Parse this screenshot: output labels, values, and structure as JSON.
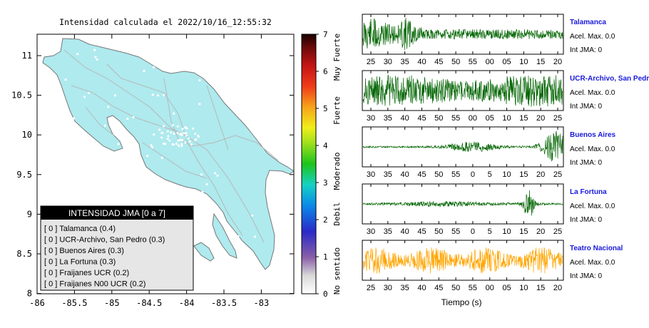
{
  "title": "Intensidad calculada el 2022/10/16_12:55:32",
  "map": {
    "x_ticks": [
      "-86",
      "-85.5",
      "-85",
      "-84.5",
      "-84",
      "-83.5",
      "-83"
    ],
    "y_ticks": [
      "11",
      "10.5",
      "10",
      "9.5",
      "9",
      "8.5",
      "8"
    ],
    "legend": {
      "header": "INTENSIDAD JMA [0 a 7]",
      "items": [
        "[ 0 ]  Talamanca (0.4)",
        "[ 0 ]  UCR-Archivo, San Pedro (0.3)",
        "[ 0 ]  Buenos Aires (0.3)",
        "[ 0 ]  La Fortuna (0.3)",
        "[ 0 ]  Fraijanes UCR (0.2)",
        "[ 0 ]  Fraijanes N00 UCR (0.2)"
      ]
    }
  },
  "colorbar": {
    "ticks": [
      "7",
      "6",
      "5",
      "4",
      "3",
      "2",
      "1",
      "0"
    ],
    "labels": [
      "Muy Fuerte",
      "Fuerte",
      "Moderado",
      "Debil",
      "No sentido"
    ]
  },
  "stations": [
    {
      "name": "Talamanca",
      "accel": "Acel. Max. 0.0",
      "int": "Int JMA: 0",
      "ticks": [
        "25",
        "30",
        "35",
        "40",
        "45",
        "50",
        "55",
        "00",
        "05",
        "10",
        "15",
        "20"
      ],
      "color": "#006400"
    },
    {
      "name": "UCR-Archivo, San Pedro",
      "accel": "Acel. Max. 0.0",
      "int": "Int JMA: 0",
      "ticks": [
        "30",
        "35",
        "40",
        "45",
        "50",
        "55",
        "00",
        "05",
        "10",
        "15",
        "20",
        "25"
      ],
      "color": "#006400"
    },
    {
      "name": "Buenos Aires",
      "accel": "Acel. Max. 0.0",
      "int": "Int JMA: 0",
      "ticks": [
        "30",
        "35",
        "40",
        "45",
        "50",
        "55",
        "0",
        "5",
        "10",
        "15",
        "20",
        "25"
      ],
      "color": "#006400"
    },
    {
      "name": "La Fortuna",
      "accel": "Acel. Max. 0.0",
      "int": "Int JMA: 0",
      "ticks": [
        "30",
        "35",
        "40",
        "45",
        "50",
        "55",
        "0",
        "5",
        "10",
        "15",
        "20",
        "25"
      ],
      "color": "#006400"
    },
    {
      "name": "Teatro Nacional",
      "accel": "Acel. Max. 0.0",
      "int": "Int JMA: 0",
      "ticks": [
        "25",
        "30",
        "35",
        "40",
        "45",
        "50",
        "55",
        "00",
        "05",
        "10",
        "15",
        "20"
      ],
      "color": "#ffa500"
    }
  ],
  "xlabel": "Tiempo (s)",
  "chart_data": {
    "type": "line",
    "title": "Intensidad calculada el 2022/10/16_12:55:32",
    "xlabel": "Tiempo (s)",
    "series": [
      {
        "name": "Talamanca",
        "intensity_jma": 0,
        "accel_max": 0.0
      },
      {
        "name": "UCR-Archivo, San Pedro",
        "intensity_jma": 0,
        "accel_max": 0.0
      },
      {
        "name": "Buenos Aires",
        "intensity_jma": 0,
        "accel_max": 0.0
      },
      {
        "name": "La Fortuna",
        "intensity_jma": 0,
        "accel_max": 0.0
      },
      {
        "name": "Teatro Nacional",
        "intensity_jma": 0,
        "accel_max": 0.0
      }
    ],
    "colorbar_range": [
      0,
      7
    ],
    "map_xlim": [
      -86,
      -82.5
    ],
    "map_ylim": [
      8,
      11.3
    ]
  }
}
